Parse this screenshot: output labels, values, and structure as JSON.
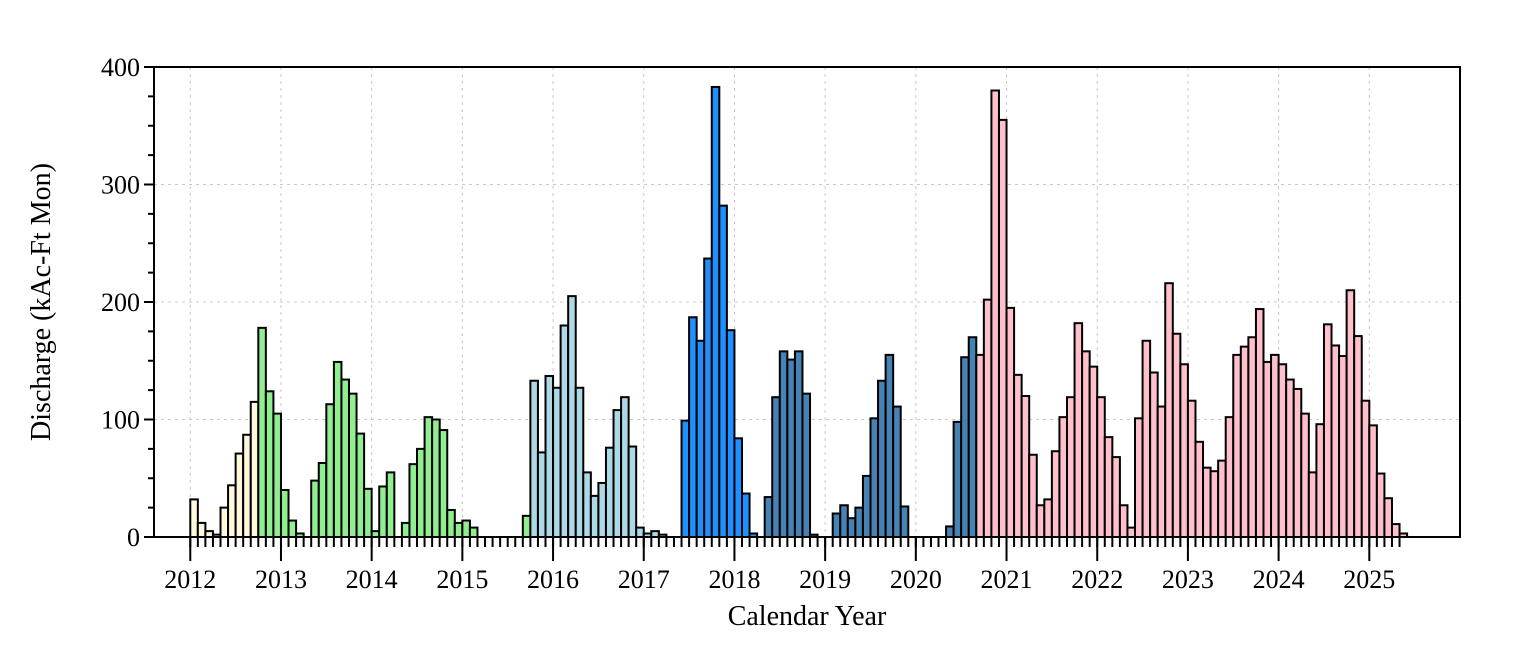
{
  "chart_data": {
    "type": "bar",
    "title": "",
    "xlabel": "Calendar Year",
    "ylabel": "Discharge (kAc-Ft Mon)",
    "ylim": [
      0,
      400
    ],
    "yticks": [
      0,
      100,
      200,
      300,
      400
    ],
    "xlim": [
      2011.6,
      2026.0
    ],
    "xticks": [
      "2012",
      "2013",
      "2014",
      "2015",
      "2016",
      "2017",
      "2018",
      "2019",
      "2020",
      "2021",
      "2022",
      "2023",
      "2024",
      "2025"
    ],
    "grid": true,
    "start_month": "2012-01",
    "colors": {
      "cream": "#fff8dc",
      "lightgreen": "#90ee90",
      "lightblue": "#add8e6",
      "dodgerblue": "#1e90ff",
      "steelblue": "#4682b4",
      "pink": "#ffc0cb"
    },
    "values": [
      32,
      12,
      5,
      2,
      25,
      44,
      71,
      87,
      115,
      178,
      124,
      105,
      40,
      14,
      3,
      0,
      48,
      63,
      113,
      149,
      134,
      122,
      88,
      41,
      5,
      43,
      55,
      0,
      12,
      62,
      75,
      102,
      100,
      91,
      23,
      12,
      14,
      8,
      0,
      0,
      0,
      0,
      0,
      0,
      18,
      133,
      72,
      137,
      127,
      180,
      205,
      127,
      55,
      35,
      46,
      76,
      108,
      119,
      77,
      8,
      3,
      5,
      2,
      0,
      0,
      99,
      187,
      167,
      237,
      383,
      282,
      176,
      84,
      37,
      3,
      0,
      34,
      119,
      158,
      151,
      158,
      122,
      2,
      0,
      0,
      20,
      27,
      16,
      25,
      52,
      101,
      133,
      155,
      111,
      26,
      0,
      0,
      0,
      0,
      0,
      9,
      98,
      153,
      170,
      155,
      202,
      380,
      355,
      195,
      138,
      120,
      70,
      27,
      32,
      73,
      102,
      119,
      182,
      158,
      145,
      119,
      85,
      68,
      27,
      8,
      101,
      167,
      140,
      111,
      216,
      173,
      147,
      116,
      81,
      59,
      56,
      65,
      102,
      155,
      162,
      170,
      194,
      149,
      155,
      147,
      134,
      126,
      105,
      55,
      96,
      181,
      163,
      154,
      210,
      171,
      116,
      95,
      54,
      33,
      11,
      3
    ],
    "color_groups": [
      "cream",
      "cream",
      "cream",
      "cream",
      "cream",
      "cream",
      "cream",
      "cream",
      "cream",
      "lightgreen",
      "lightgreen",
      "lightgreen",
      "lightgreen",
      "lightgreen",
      "lightgreen",
      "lightgreen",
      "lightgreen",
      "lightgreen",
      "lightgreen",
      "lightgreen",
      "lightgreen",
      "lightgreen",
      "lightgreen",
      "lightgreen",
      "lightgreen",
      "lightgreen",
      "lightgreen",
      "lightgreen",
      "lightgreen",
      "lightgreen",
      "lightgreen",
      "lightgreen",
      "lightgreen",
      "lightgreen",
      "lightgreen",
      "lightgreen",
      "lightgreen",
      "lightgreen",
      "lightgreen",
      "lightgreen",
      "lightgreen",
      "lightgreen",
      "lightgreen",
      "lightgreen",
      "lightgreen",
      "lightblue",
      "lightblue",
      "lightblue",
      "lightblue",
      "lightblue",
      "lightblue",
      "lightblue",
      "lightblue",
      "lightblue",
      "lightblue",
      "lightblue",
      "lightblue",
      "lightblue",
      "lightblue",
      "lightblue",
      "lightblue",
      "lightblue",
      "lightblue",
      "lightblue",
      "dodgerblue",
      "dodgerblue",
      "dodgerblue",
      "dodgerblue",
      "dodgerblue",
      "dodgerblue",
      "dodgerblue",
      "dodgerblue",
      "dodgerblue",
      "dodgerblue",
      "dodgerblue",
      "dodgerblue",
      "steelblue",
      "steelblue",
      "steelblue",
      "steelblue",
      "steelblue",
      "steelblue",
      "steelblue",
      "steelblue",
      "steelblue",
      "steelblue",
      "steelblue",
      "steelblue",
      "steelblue",
      "steelblue",
      "steelblue",
      "steelblue",
      "steelblue",
      "steelblue",
      "steelblue",
      "steelblue",
      "steelblue",
      "steelblue",
      "steelblue",
      "steelblue",
      "steelblue",
      "steelblue",
      "steelblue",
      "steelblue",
      "pink",
      "pink",
      "pink",
      "pink",
      "pink",
      "pink",
      "pink",
      "pink",
      "pink",
      "pink",
      "pink",
      "pink",
      "pink",
      "pink",
      "pink",
      "pink",
      "pink",
      "pink",
      "pink",
      "pink",
      "pink",
      "pink",
      "pink",
      "pink",
      "pink",
      "pink",
      "pink",
      "pink",
      "pink",
      "pink",
      "pink",
      "pink",
      "pink",
      "pink",
      "pink",
      "pink",
      "pink",
      "pink",
      "pink",
      "pink",
      "pink",
      "pink",
      "pink",
      "pink",
      "pink",
      "pink",
      "pink",
      "pink",
      "pink",
      "pink",
      "pink",
      "pink",
      "pink",
      "pink",
      "pink",
      "pink",
      "pink"
    ]
  }
}
